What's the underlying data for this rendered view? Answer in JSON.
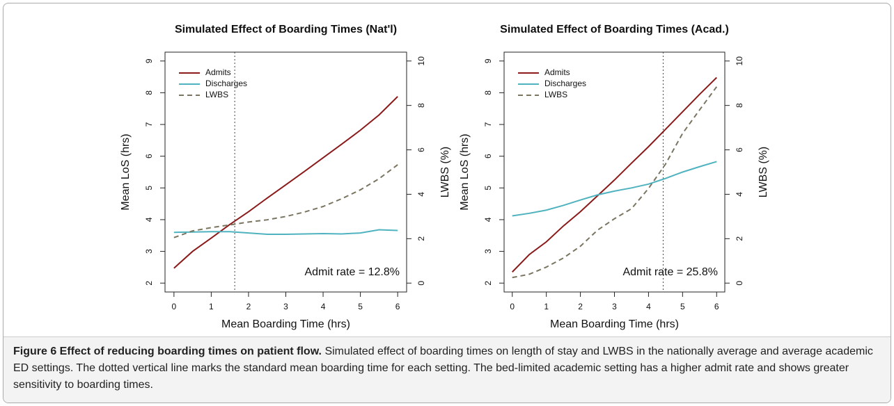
{
  "chart_data": [
    {
      "type": "line",
      "title": "Simulated Effect of Boarding Times (Nat'l)",
      "x_label": "Mean Boarding Time (hrs)",
      "y_label": "Mean LoS (hrs)",
      "y2_label": "LWBS (%)",
      "x": [
        0,
        0.5,
        1,
        1.5,
        2,
        2.5,
        3,
        3.5,
        4,
        4.5,
        5,
        5.5,
        6
      ],
      "series": [
        {
          "name": "Admits",
          "color": "#8b1a1a",
          "line_style": "solid",
          "values": [
            2.47,
            3.0,
            3.42,
            3.85,
            4.25,
            4.68,
            5.1,
            5.52,
            5.95,
            6.38,
            6.82,
            7.3,
            7.88
          ]
        },
        {
          "name": "Discharges",
          "color": "#4fb3bf",
          "line_style": "solid",
          "values": [
            3.6,
            3.61,
            3.62,
            3.62,
            3.58,
            3.54,
            3.54,
            3.55,
            3.56,
            3.55,
            3.58,
            3.68,
            3.66
          ]
        },
        {
          "name": "LWBS",
          "color": "#7a7560",
          "line_style": "dashed",
          "axis": "y2",
          "values": [
            2.05,
            2.35,
            2.5,
            2.62,
            2.75,
            2.85,
            3.0,
            3.2,
            3.45,
            3.8,
            4.2,
            4.7,
            5.33
          ]
        }
      ],
      "xlim": [
        -0.24,
        6.24
      ],
      "ylim": [
        1.72,
        9.28
      ],
      "y2lim": [
        -0.4,
        10.4
      ],
      "xticks": [
        0,
        1,
        2,
        3,
        4,
        5,
        6
      ],
      "yticks": [
        2,
        3,
        4,
        5,
        6,
        7,
        8,
        9
      ],
      "y2ticks": [
        0,
        2,
        4,
        6,
        8,
        10
      ],
      "vline": 1.63,
      "annotation": "Admit rate = 12.8%",
      "legend": "top-left"
    },
    {
      "type": "line",
      "title": "Simulated Effect of Boarding Times (Acad.)",
      "x_label": "Mean Boarding Time (hrs)",
      "y_label": "Mean LoS (hrs)",
      "y2_label": "LWBS (%)",
      "x": [
        0,
        0.5,
        1,
        1.5,
        2,
        2.5,
        3,
        3.5,
        4,
        4.5,
        5,
        5.5,
        6
      ],
      "series": [
        {
          "name": "Admits",
          "color": "#8b1a1a",
          "line_style": "solid",
          "values": [
            2.35,
            2.9,
            3.3,
            3.8,
            4.25,
            4.75,
            5.25,
            5.78,
            6.3,
            6.85,
            7.4,
            7.95,
            8.48
          ]
        },
        {
          "name": "Discharges",
          "color": "#4fb3bf",
          "line_style": "solid",
          "values": [
            4.12,
            4.2,
            4.3,
            4.45,
            4.62,
            4.78,
            4.9,
            5.0,
            5.12,
            5.3,
            5.5,
            5.67,
            5.83
          ]
        },
        {
          "name": "LWBS",
          "color": "#7a7560",
          "line_style": "dashed",
          "axis": "y2",
          "values": [
            0.25,
            0.4,
            0.72,
            1.13,
            1.66,
            2.38,
            2.9,
            3.35,
            4.26,
            5.36,
            6.74,
            7.8,
            8.84
          ]
        }
      ],
      "xlim": [
        -0.24,
        6.24
      ],
      "ylim": [
        1.72,
        9.28
      ],
      "y2lim": [
        -0.4,
        10.4
      ],
      "xticks": [
        0,
        1,
        2,
        3,
        4,
        5,
        6
      ],
      "yticks": [
        2,
        3,
        4,
        5,
        6,
        7,
        8,
        9
      ],
      "y2ticks": [
        0,
        2,
        4,
        6,
        8,
        10
      ],
      "vline": 4.43,
      "annotation": "Admit rate = 25.8%",
      "legend": "top-left"
    }
  ],
  "caption": {
    "title": "Figure 6 Effect of reducing boarding times on patient flow.",
    "text": "Simulated effect of boarding times on length of stay and LWBS in the nationally average and average academic ED settings. The dotted vertical line marks the standard mean boarding time for each setting. The bed-limited academic setting has a higher admit rate and shows greater sensitivity to boarding times."
  }
}
